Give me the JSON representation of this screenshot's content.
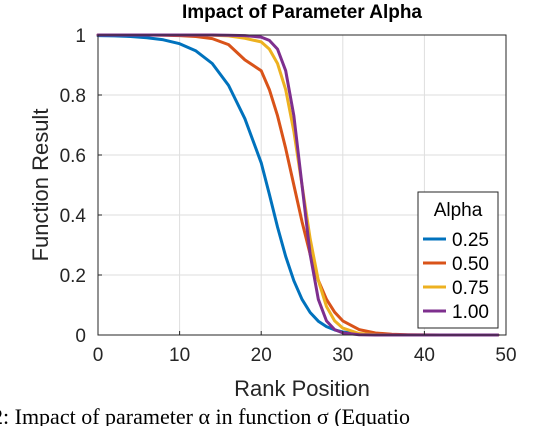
{
  "chart_data": {
    "type": "line",
    "title": "Impact of Parameter Alpha",
    "xlabel": "Rank Position",
    "ylabel": "Function Result",
    "xlim": [
      0,
      50
    ],
    "ylim": [
      0,
      1
    ],
    "xticks": [
      "0",
      "10",
      "20",
      "30",
      "40",
      "50"
    ],
    "yticks": [
      "0",
      "0.2",
      "0.4",
      "0.6",
      "0.8",
      "1"
    ],
    "grid": true,
    "legend_title": "Alpha",
    "legend_position": "bottom-right",
    "x": [
      0,
      2,
      4,
      6,
      8,
      10,
      12,
      14,
      16,
      18,
      20,
      21,
      22,
      23,
      24,
      25,
      26,
      27,
      28,
      29,
      30,
      32,
      34,
      36,
      38,
      40,
      42,
      44,
      46,
      48,
      49
    ],
    "series": [
      {
        "name": "0.25",
        "color": "#0072BD",
        "values": [
          0.998,
          0.997,
          0.995,
          0.991,
          0.984,
          0.971,
          0.947,
          0.905,
          0.832,
          0.721,
          0.574,
          0.469,
          0.36,
          0.262,
          0.181,
          0.119,
          0.075,
          0.046,
          0.028,
          0.017,
          0.01,
          0.0037,
          0.0013,
          0.0005,
          0.0002,
          0.0001,
          0,
          0,
          0,
          0,
          0
        ]
      },
      {
        "name": "0.50",
        "color": "#D95319",
        "values": [
          1,
          1,
          1,
          1,
          0.999,
          0.998,
          0.995,
          0.988,
          0.968,
          0.917,
          0.881,
          0.818,
          0.731,
          0.622,
          0.5,
          0.378,
          0.269,
          0.182,
          0.119,
          0.076,
          0.047,
          0.018,
          0.0067,
          0.0025,
          0.0009,
          0.0003,
          0.0001,
          0,
          0,
          0,
          0
        ]
      },
      {
        "name": "0.75",
        "color": "#EDB120",
        "values": [
          1,
          1,
          1,
          1,
          1,
          1,
          1,
          0.999,
          0.997,
          0.989,
          0.977,
          0.953,
          0.905,
          0.818,
          0.679,
          0.5,
          0.321,
          0.182,
          0.095,
          0.047,
          0.023,
          0.005,
          0.0011,
          0.0002,
          0,
          0,
          0,
          0,
          0,
          0,
          0
        ]
      },
      {
        "name": "1.00",
        "color": "#7E2F8E",
        "values": [
          1,
          1,
          1,
          1,
          1,
          1,
          1,
          1,
          0.999,
          0.998,
          0.993,
          0.982,
          0.953,
          0.881,
          0.731,
          0.5,
          0.269,
          0.119,
          0.047,
          0.018,
          0.007,
          0.0009,
          0.0001,
          0,
          0,
          0,
          0,
          0,
          0,
          0,
          0
        ]
      }
    ]
  },
  "caption": "2: Impact of parameter α in function σ (Equatio"
}
